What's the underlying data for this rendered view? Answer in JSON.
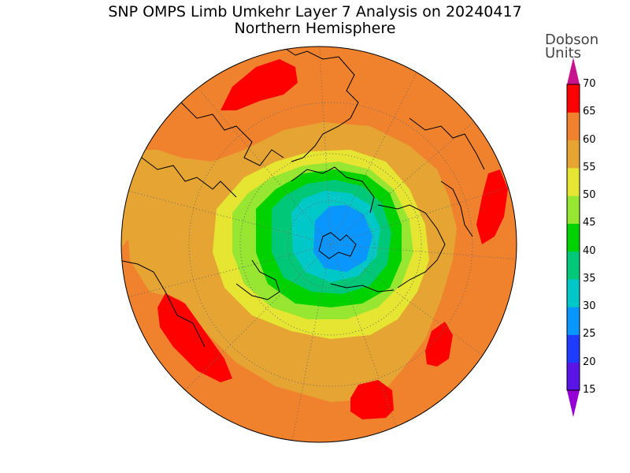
{
  "title": "SNP OMPS Limb Umkehr Layer 7 Analysis on 20240417",
  "subtitle": "Northern Hemisphere",
  "colorbar": {
    "unit_line1": "Dobson",
    "unit_line2": "Units",
    "levels": [
      15,
      20,
      25,
      30,
      35,
      40,
      45,
      50,
      55,
      60,
      65,
      70
    ],
    "level_labels": [
      "15",
      "20",
      "25",
      "30",
      "35",
      "40",
      "45",
      "50",
      "55",
      "60",
      "65",
      "70"
    ],
    "colors": [
      "#8a00d4",
      "#5a14e6",
      "#1e3cff",
      "#0a96ff",
      "#00c8c8",
      "#00c878",
      "#00d200",
      "#96e632",
      "#e6e632",
      "#e6a532",
      "#f0822d",
      "#ff0000"
    ],
    "under_color": "#9400d3",
    "over_color": "#c8148c"
  },
  "map": {
    "projection": "north-polar-stereographic",
    "background_value_color": "#f0822d"
  }
}
